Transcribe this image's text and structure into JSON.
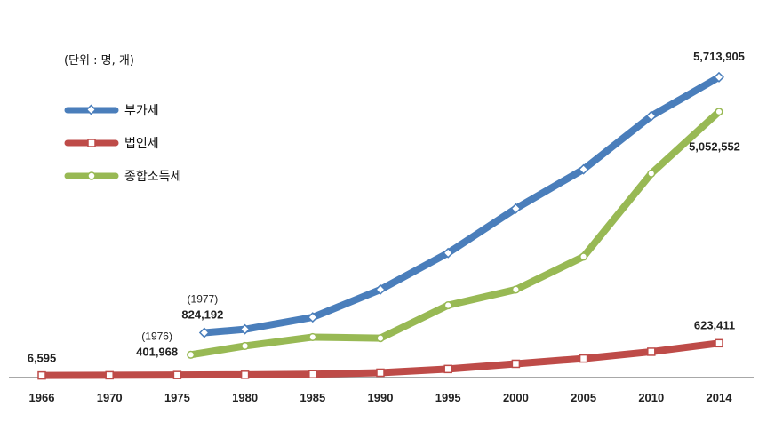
{
  "chart_data": {
    "type": "line",
    "unit_note": "(단위 : 명, 개)",
    "categories": [
      "1966",
      "1970",
      "1975",
      "1980",
      "1985",
      "1990",
      "1995",
      "2000",
      "2005",
      "2010",
      "2014"
    ],
    "extra_points": {
      "1976": "1976",
      "1977": "1977"
    },
    "ylim": [
      0,
      6000000
    ],
    "series": [
      {
        "name": "부가세",
        "color": "#4a7ebb",
        "points": [
          {
            "x": 1977,
            "y": 824192
          },
          {
            "x": 1980,
            "y": 890000
          },
          {
            "x": 1985,
            "y": 1120000
          },
          {
            "x": 1990,
            "y": 1650000
          },
          {
            "x": 1995,
            "y": 2350000
          },
          {
            "x": 2000,
            "y": 3200000
          },
          {
            "x": 2005,
            "y": 3950000
          },
          {
            "x": 2010,
            "y": 4970000
          },
          {
            "x": 2014,
            "y": 5713905
          }
        ]
      },
      {
        "name": "법인세",
        "color": "#be4b48",
        "points": [
          {
            "x": 1966,
            "y": 6595
          },
          {
            "x": 1970,
            "y": 10000
          },
          {
            "x": 1975,
            "y": 14000
          },
          {
            "x": 1980,
            "y": 20000
          },
          {
            "x": 1985,
            "y": 30000
          },
          {
            "x": 1990,
            "y": 60000
          },
          {
            "x": 1995,
            "y": 130000
          },
          {
            "x": 2000,
            "y": 230000
          },
          {
            "x": 2005,
            "y": 330000
          },
          {
            "x": 2010,
            "y": 460000
          },
          {
            "x": 2014,
            "y": 623411
          }
        ]
      },
      {
        "name": "종합소득세",
        "color": "#98b954",
        "points": [
          {
            "x": 1976,
            "y": 401968
          },
          {
            "x": 1980,
            "y": 570000
          },
          {
            "x": 1985,
            "y": 740000
          },
          {
            "x": 1990,
            "y": 720000
          },
          {
            "x": 1995,
            "y": 1350000
          },
          {
            "x": 2000,
            "y": 1650000
          },
          {
            "x": 2005,
            "y": 2280000
          },
          {
            "x": 2010,
            "y": 3870000
          },
          {
            "x": 2014,
            "y": 5052552
          }
        ]
      }
    ],
    "annotations": [
      {
        "id": "note-1977",
        "text": "(1977)",
        "series": 0,
        "point": 0,
        "kind": "note"
      },
      {
        "id": "val-1977",
        "text": "824,192",
        "series": 0,
        "point": 0,
        "kind": "value"
      },
      {
        "id": "note-1976",
        "text": "(1976)",
        "series": 2,
        "point": 0,
        "kind": "note"
      },
      {
        "id": "val-1976",
        "text": "401,968",
        "series": 2,
        "point": 0,
        "kind": "value"
      },
      {
        "id": "val-1966",
        "text": "6,595",
        "series": 1,
        "point": 0,
        "kind": "value"
      },
      {
        "id": "val-2014-vat",
        "text": "5,713,905",
        "series": 0,
        "point": 8,
        "kind": "value"
      },
      {
        "id": "val-2014-inc",
        "text": "5,052,552",
        "series": 2,
        "point": 8,
        "kind": "value"
      },
      {
        "id": "val-2014-corp",
        "text": "623,411",
        "series": 1,
        "point": 10,
        "kind": "value"
      }
    ],
    "legend_position": "top-left",
    "grid": false
  }
}
